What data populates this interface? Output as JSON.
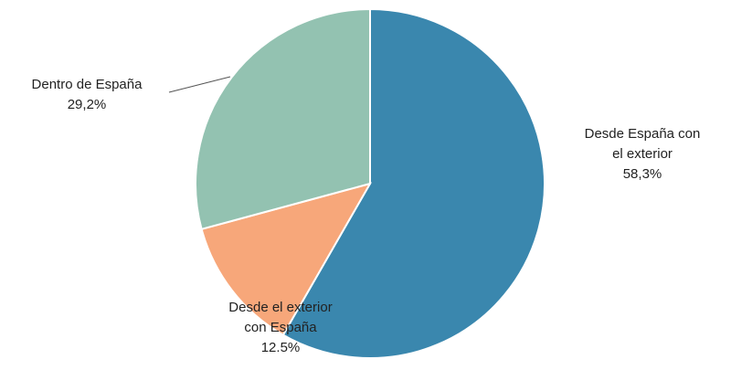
{
  "chart_data": {
    "type": "pie",
    "title": "",
    "slices": [
      {
        "name_lines": [
          "Desde España con",
          "el exterior"
        ],
        "value": 58.3,
        "value_label": "58,3%",
        "color": "#3A87AE"
      },
      {
        "name_lines": [
          "Desde el exterior",
          "con España"
        ],
        "value": 12.5,
        "value_label": "12.5%",
        "color": "#F7A77A"
      },
      {
        "name_lines": [
          "Dentro de España"
        ],
        "value": 29.2,
        "value_label": "29,2%",
        "color": "#93C2B1"
      }
    ],
    "start": "top",
    "direction": "clockwise",
    "legend": "none"
  }
}
